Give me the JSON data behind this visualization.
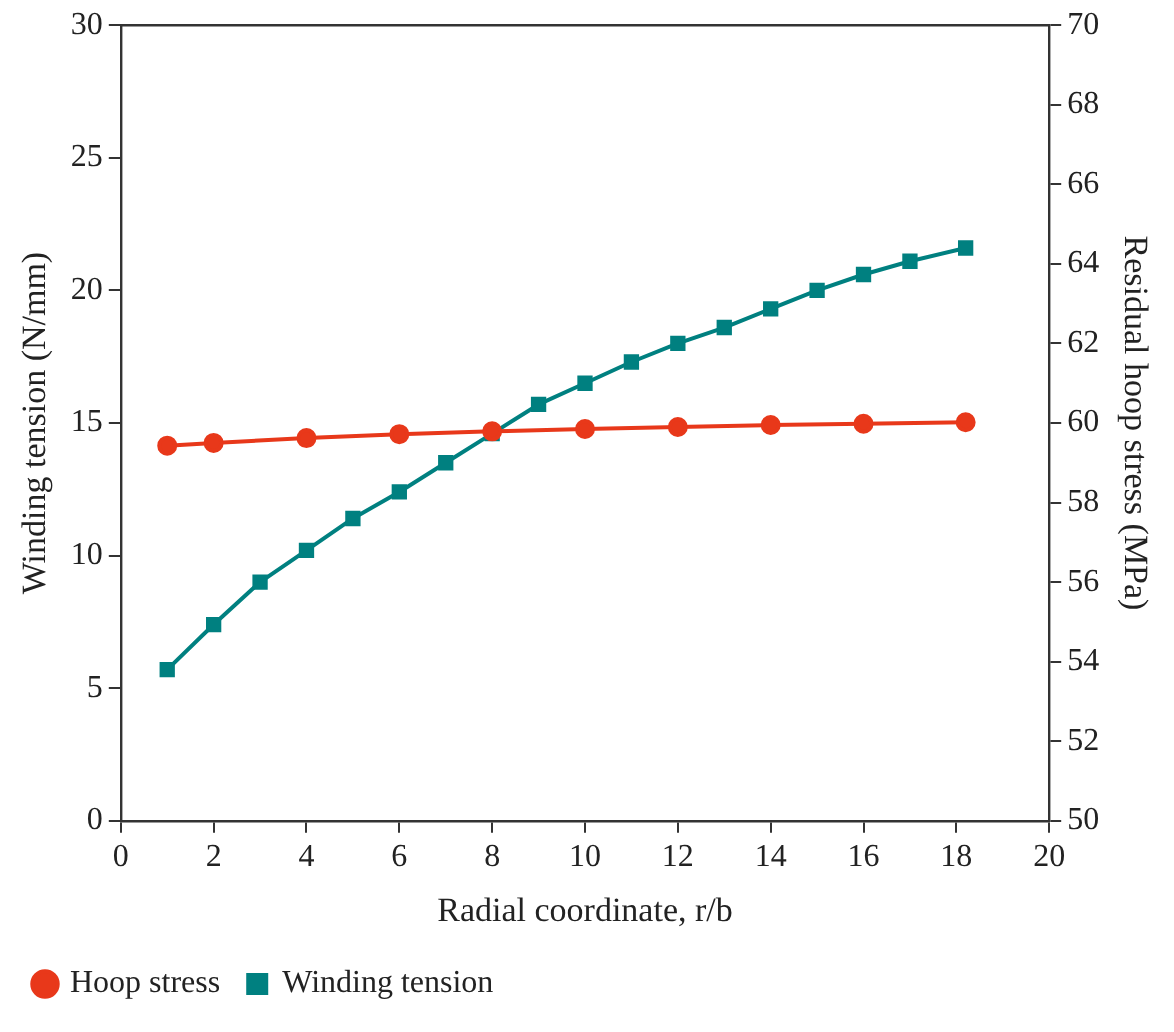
{
  "chart_data": {
    "type": "line",
    "xlabel": "Radial coordinate, r/b",
    "ylabel": "Winding tension (N/mm)",
    "y2label": "Residual hoop stress (MPa)",
    "xlim": [
      0,
      20
    ],
    "xticks": [
      0,
      2,
      4,
      6,
      8,
      10,
      12,
      14,
      16,
      18,
      20
    ],
    "ylim": [
      0,
      30
    ],
    "yticks": [
      0,
      5,
      10,
      15,
      20,
      25,
      30
    ],
    "y2lim": [
      50,
      70
    ],
    "y2ticks": [
      50,
      52,
      54,
      56,
      58,
      60,
      62,
      64,
      66,
      68,
      70
    ],
    "grid": false,
    "legend": "bottom left",
    "line_style": "solid",
    "series": [
      {
        "name": "Winding tension",
        "color": "#008080",
        "marker": "square",
        "x": [
          1,
          2,
          3,
          4,
          5,
          6,
          7,
          8,
          9,
          10,
          11,
          12,
          13,
          14,
          15,
          16,
          17,
          18.2
        ],
        "values": [
          5.7,
          7.4,
          9.0,
          10.2,
          11.4,
          12.4,
          13.5,
          14.6,
          15.7,
          16.5,
          17.3,
          18.0,
          18.6,
          19.3,
          20.0,
          20.6,
          21.1,
          21.6
        ]
      },
      {
        "name": "Hoop stress",
        "color": "#e8381a",
        "marker": "circle",
        "axis": "y2",
        "x": [
          1,
          2,
          4,
          6,
          8,
          10,
          12,
          14,
          16,
          18.2
        ],
        "values": [
          59.43,
          59.5,
          59.62,
          59.72,
          59.79,
          59.85,
          59.9,
          59.95,
          59.98,
          60.02
        ]
      }
    ]
  }
}
